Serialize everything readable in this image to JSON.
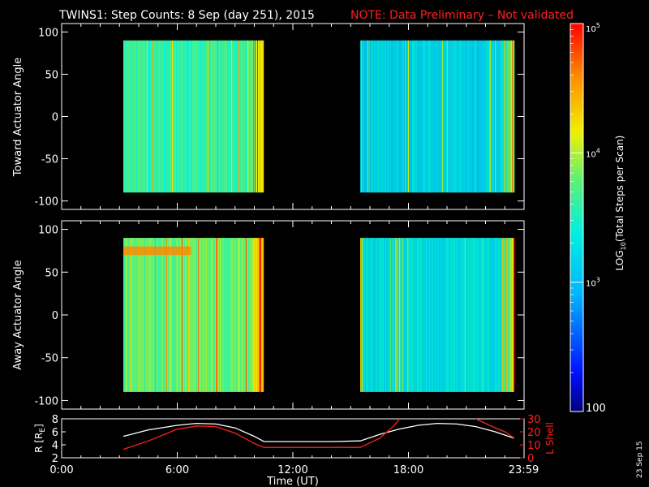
{
  "title": {
    "main": "TWINS1: Step Counts:  8 Sep (day 251), 2015",
    "note": "NOTE: Data Preliminary – Not validated",
    "note_color": "#ff2020"
  },
  "footer_date": "23 Sep 15",
  "colorbar": {
    "label": "LOG10(Total Steps per Scan)",
    "label_prefix": "LOG",
    "label_sub": "10",
    "label_suffix": "(Total Steps per Scan)",
    "ticks": [
      {
        "value": 100,
        "text": "100"
      },
      {
        "value": 1000,
        "text": "10",
        "sup": "3"
      },
      {
        "value": 10000,
        "text": "10",
        "sup": "4"
      },
      {
        "value": 100000,
        "text": "10",
        "sup": "5"
      }
    ]
  },
  "chart_data": [
    {
      "type": "heatmap",
      "ylabel": "Toward Actuator Angle",
      "ylim": [
        -110,
        110
      ],
      "yticks": [
        100,
        50,
        0,
        -50,
        -100
      ],
      "data_y_range": [
        -90,
        90
      ],
      "xlim": [
        0,
        24
      ],
      "scale": "log10 counts",
      "data_blocks": [
        {
          "start_hour": 3.2,
          "end_hour": 10.5,
          "level": "medium",
          "log10_counts_approx": 3.6
        },
        {
          "start_hour": 15.5,
          "end_hour": 23.5,
          "level": "low-medium",
          "log10_counts_approx": 3.2
        }
      ]
    },
    {
      "type": "heatmap",
      "ylabel": "Away Actuator Angle",
      "ylim": [
        -110,
        110
      ],
      "yticks": [
        100,
        50,
        0,
        -50,
        -100
      ],
      "data_y_range": [
        -90,
        90
      ],
      "xlim": [
        0,
        24
      ],
      "scale": "log10 counts",
      "data_blocks": [
        {
          "start_hour": 3.2,
          "end_hour": 10.5,
          "level": "medium-high",
          "log10_counts_approx": 3.8
        },
        {
          "start_hour": 15.5,
          "end_hour": 23.5,
          "level": "low-medium",
          "log10_counts_approx": 3.3
        }
      ]
    },
    {
      "type": "line",
      "ylabel": "R [RE]",
      "ylabel_prefix": "R [R",
      "ylabel_sub": "E",
      "ylabel_suffix": "]",
      "y2label": "L Shell",
      "xlabel": "Time (UT)",
      "xticks": [
        "0:00",
        "6:00",
        "12:00",
        "18:00",
        "23:59"
      ],
      "xtick_hours": [
        0,
        6,
        12,
        18,
        23.98
      ],
      "ylim": [
        2,
        8
      ],
      "yticks": [
        8,
        6,
        4,
        2
      ],
      "y2lim": [
        0,
        30
      ],
      "y2ticks": [
        30,
        20,
        10,
        0
      ],
      "series": [
        {
          "name": "R",
          "axis": "left",
          "x": [
            3.2,
            4.5,
            6,
            7,
            8,
            9,
            10,
            10.5,
            12,
            14,
            15.5,
            16.5,
            17.5,
            18.5,
            19.5,
            20.5,
            21.5,
            22.5,
            23.5
          ],
          "values": [
            5.3,
            6.3,
            7.0,
            7.3,
            7.2,
            6.6,
            5.3,
            4.5,
            4.5,
            4.5,
            4.6,
            5.6,
            6.4,
            7.0,
            7.3,
            7.2,
            6.8,
            6.0,
            5.0
          ]
        },
        {
          "name": "L Shell",
          "axis": "right",
          "x": [
            3.2,
            4.5,
            6,
            7,
            8,
            9,
            10,
            10.5,
            12,
            14,
            15.5,
            16.5,
            17.2,
            17.55,
            21.5,
            22.2,
            23.0,
            23.5
          ],
          "values": [
            6.5,
            13,
            22,
            24.5,
            24,
            19,
            11,
            8,
            8,
            8,
            8,
            15,
            24,
            31,
            31,
            25,
            20,
            15
          ]
        }
      ]
    }
  ]
}
